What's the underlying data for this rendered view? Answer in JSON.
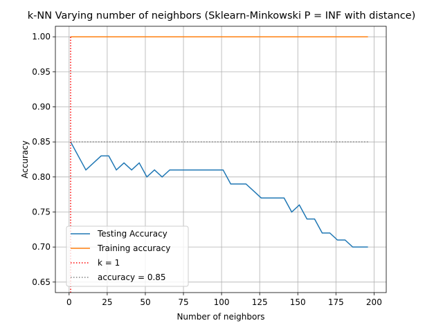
{
  "chart_data": {
    "type": "line",
    "title": "k-NN Varying number of neighbors (Sklearn-Minkowski P = INF with distance)",
    "xlabel": "Number of neighbors",
    "ylabel": "Accuracy",
    "xlim": [
      -9,
      208
    ],
    "ylim": [
      0.635,
      1.015
    ],
    "xticks": [
      0,
      25,
      50,
      75,
      100,
      125,
      150,
      175,
      200
    ],
    "yticks": [
      0.65,
      0.7,
      0.75,
      0.8,
      0.85,
      0.9,
      0.95,
      1.0
    ],
    "xtick_labels": [
      "0",
      "25",
      "50",
      "75",
      "100",
      "125",
      "150",
      "175",
      "200"
    ],
    "ytick_labels": [
      "0.65",
      "0.70",
      "0.75",
      "0.80",
      "0.85",
      "0.90",
      "0.95",
      "1.00"
    ],
    "grid": true,
    "legend_position": "lower-left",
    "series": [
      {
        "name": "Testing Accuracy",
        "color": "#1f77b4",
        "style": "solid",
        "x": [
          1,
          6,
          11,
          16,
          21,
          26,
          31,
          36,
          41,
          46,
          51,
          56,
          61,
          66,
          71,
          76,
          81,
          86,
          91,
          96,
          101,
          106,
          111,
          116,
          121,
          126,
          131,
          136,
          141,
          146,
          151,
          156,
          161,
          166,
          171,
          176,
          181,
          186,
          191,
          196
        ],
        "y": [
          0.85,
          0.83,
          0.81,
          0.82,
          0.83,
          0.83,
          0.81,
          0.82,
          0.81,
          0.82,
          0.8,
          0.81,
          0.8,
          0.81,
          0.81,
          0.81,
          0.81,
          0.81,
          0.81,
          0.81,
          0.81,
          0.79,
          0.79,
          0.79,
          0.78,
          0.77,
          0.77,
          0.77,
          0.77,
          0.75,
          0.76,
          0.74,
          0.74,
          0.72,
          0.72,
          0.71,
          0.71,
          0.7,
          0.7,
          0.7
        ]
      },
      {
        "name": "Training accuracy",
        "color": "#ff7f0e",
        "style": "solid",
        "x": [
          1,
          196
        ],
        "y": [
          1.0,
          1.0
        ]
      },
      {
        "name": "k = 1",
        "color": "#ff0000",
        "style": "dotted",
        "x": [
          1,
          1
        ],
        "y": [
          0.635,
          1.0
        ]
      },
      {
        "name": "accuracy = 0.85",
        "color": "#808080",
        "style": "dotted",
        "x": [
          1,
          196
        ],
        "y": [
          0.85,
          0.85
        ]
      }
    ]
  }
}
